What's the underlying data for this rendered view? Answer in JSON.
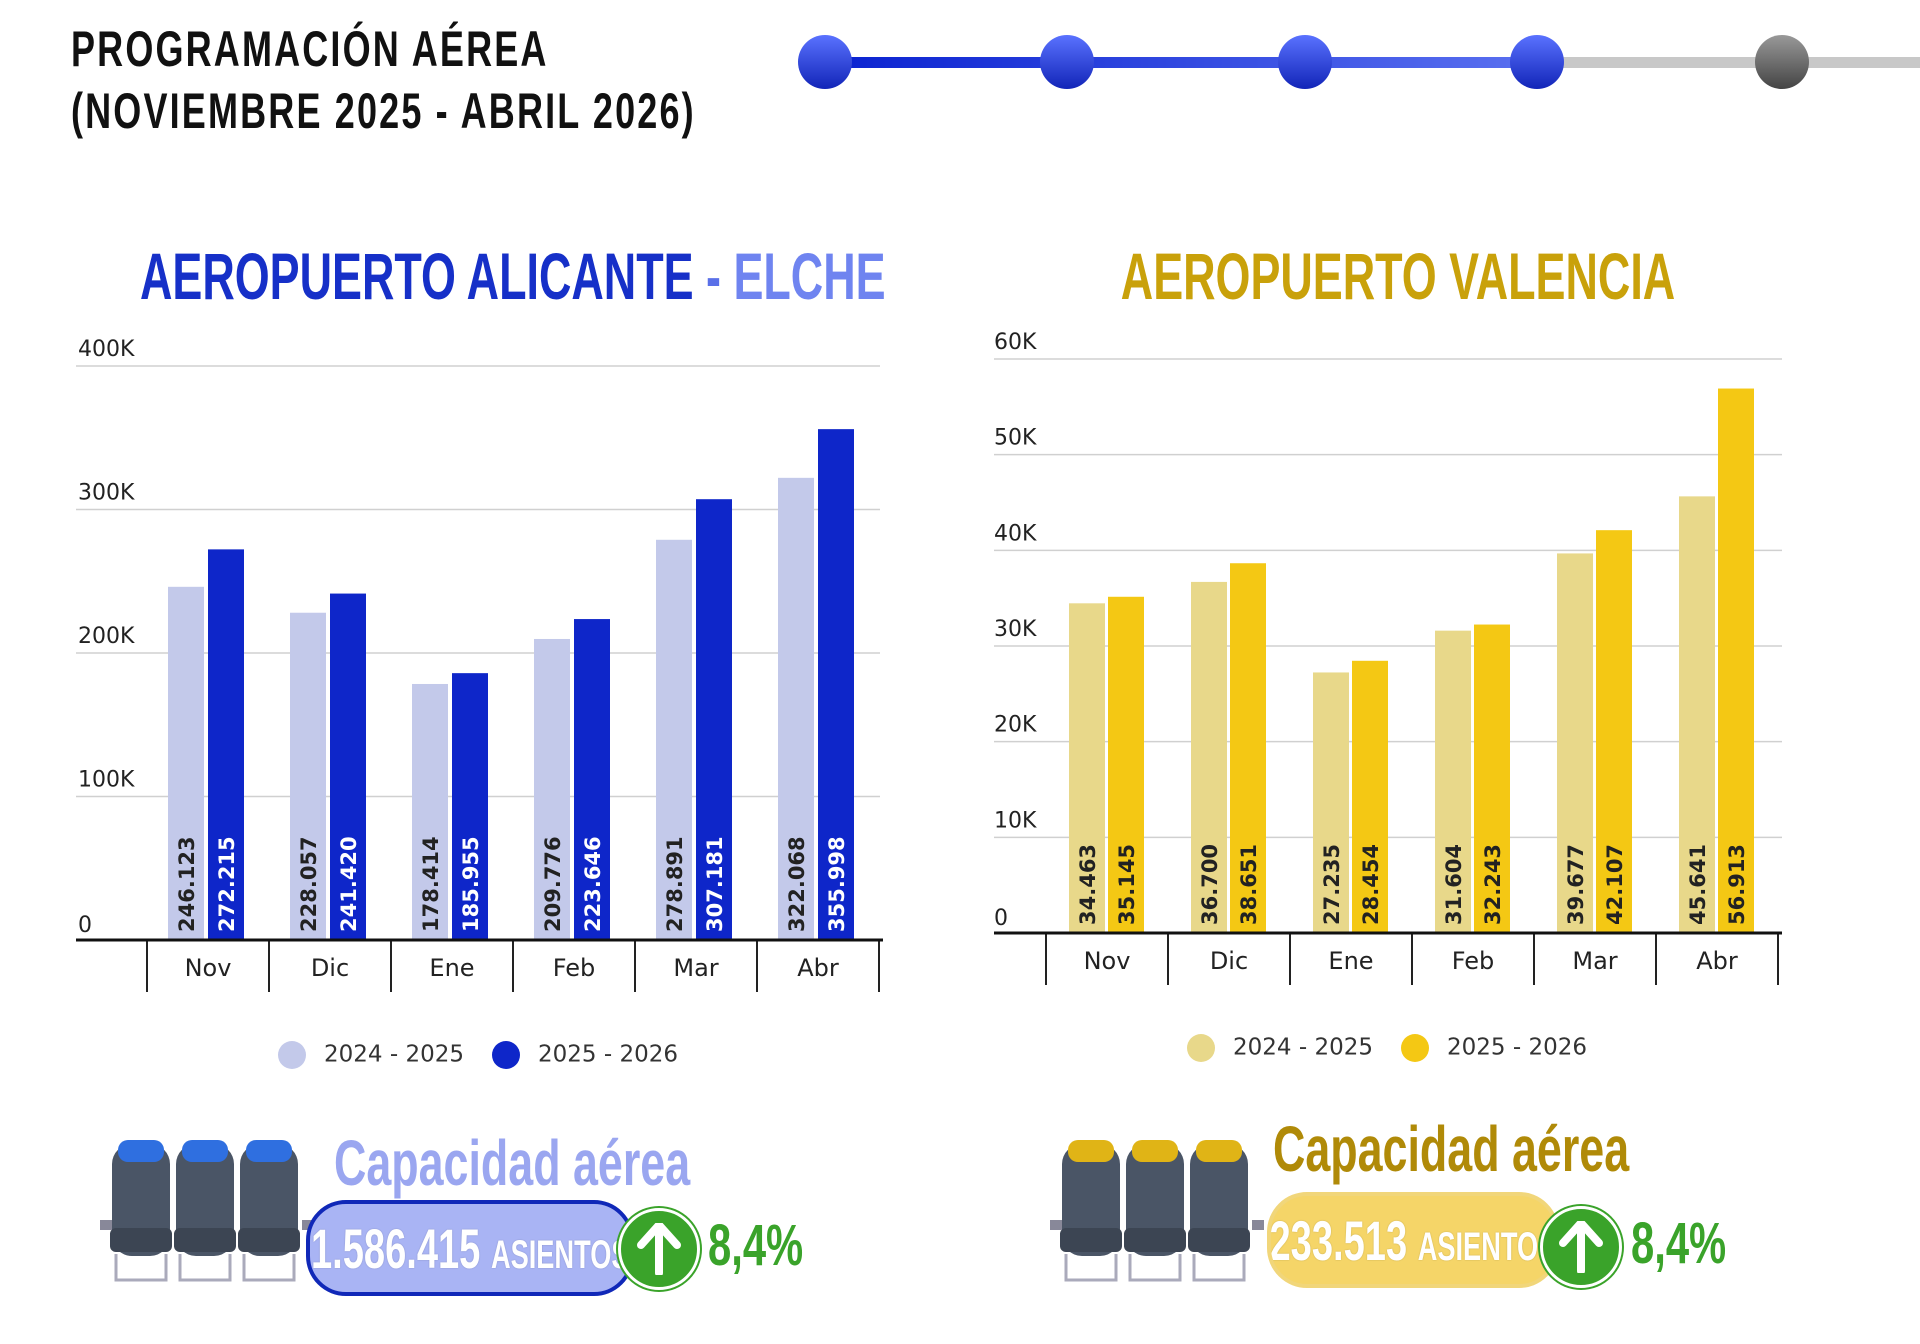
{
  "header": {
    "line1": "PROGRAMACIÓN AÉREA",
    "line2": "(NOVIEMBRE 2025 - ABRIL 2026)"
  },
  "progress": {
    "steps_total": 5,
    "steps_done": 4,
    "colors": {
      "done": "#1f3fd8",
      "pending": "#666666"
    }
  },
  "chart_data": [
    {
      "type": "bar",
      "title_part1": "AEROPUERTO ALICANTE",
      "title_sep": " - ",
      "title_part2": "ELCHE",
      "categories": [
        "Nov",
        "Dic",
        "Ene",
        "Feb",
        "Mar",
        "Abr"
      ],
      "yticks": [
        "0",
        "100K",
        "200K",
        "300K",
        "400K"
      ],
      "ylim": [
        0,
        400000
      ],
      "series": [
        {
          "name": "2024 - 2025",
          "color": "#c3c9ea",
          "values": [
            246123,
            228057,
            178414,
            209776,
            278891,
            322068
          ],
          "labels": [
            "246.123",
            "228.057",
            "178.414",
            "209.776",
            "278.891",
            "322.068"
          ]
        },
        {
          "name": "2025 - 2026",
          "color": "#0e26c9",
          "values": [
            272215,
            241420,
            185955,
            223646,
            307181,
            355998
          ],
          "labels": [
            "272.215",
            "241.420",
            "185.955",
            "223.646",
            "307.181",
            "355.998"
          ]
        }
      ],
      "legend": "bottom",
      "grid": true
    },
    {
      "type": "bar",
      "title": "AEROPUERTO VALENCIA",
      "categories": [
        "Nov",
        "Dic",
        "Ene",
        "Feb",
        "Mar",
        "Abr"
      ],
      "yticks": [
        "0",
        "10K",
        "20K",
        "30K",
        "40K",
        "50K",
        "60K"
      ],
      "ylim": [
        0,
        60000
      ],
      "series": [
        {
          "name": "2024 - 2025",
          "color": "#e8d88a",
          "values": [
            34463,
            36700,
            27235,
            31604,
            39677,
            45641
          ],
          "labels": [
            "34.463",
            "36.700",
            "27.235",
            "31.604",
            "39.677",
            "45.641"
          ]
        },
        {
          "name": "2025 - 2026",
          "color": "#f4c814",
          "values": [
            35145,
            38651,
            28454,
            32243,
            42107,
            56913
          ],
          "labels": [
            "35.145",
            "38.651",
            "28.454",
            "32.243",
            "42.107",
            "56.913"
          ]
        }
      ],
      "legend": "bottom",
      "grid": true
    }
  ],
  "capacity": [
    {
      "title": "Capacidad aérea",
      "seats": "1.586.415",
      "unit": "ASIENTOS",
      "change": "8,4%"
    },
    {
      "title": "Capacidad aérea",
      "seats": "233.513",
      "unit": "ASIENTOS",
      "change": "8,4%"
    }
  ]
}
